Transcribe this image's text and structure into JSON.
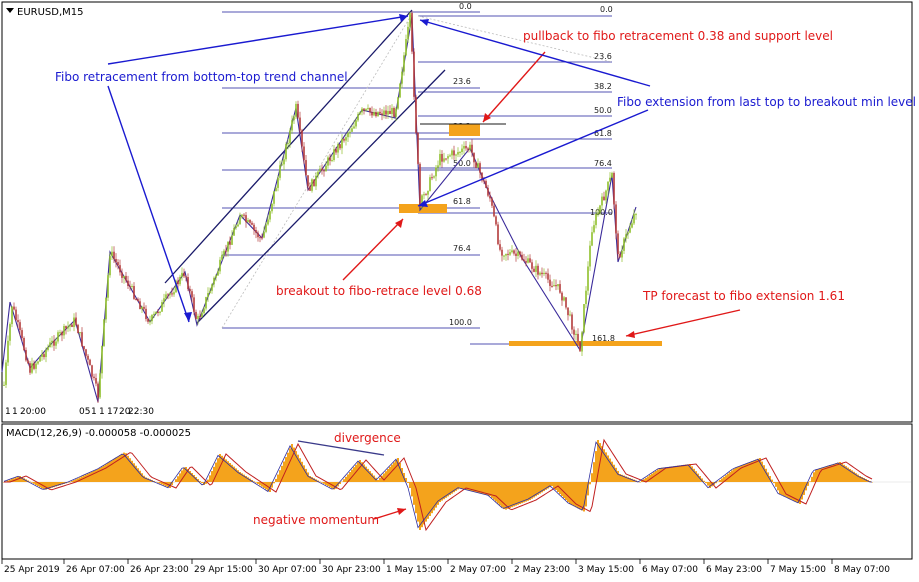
{
  "window": {
    "symbol_title": "EURUSD,M15",
    "macd_title": "MACD(12,26,9) -0.000058 -0.000025"
  },
  "annotations": {
    "fibo_retracement": "Fibo retracement from bottom-top trend channel",
    "pullback": "pullback to fibo retracement 0.38 and support level",
    "fibo_extension": "Fibo extension from last top to breakout min level",
    "breakout": "breakout to fibo-retrace level 0.68",
    "tp_forecast": "TP forecast to fibo extension 1.61",
    "divergence": "divergence",
    "negative_momentum": "negative momentum"
  },
  "retracement_levels": [
    "0.0",
    "23.6",
    "38.2",
    "50.0",
    "61.8",
    "76.4",
    "100.0"
  ],
  "extension_levels": [
    "0.0",
    "23.6",
    "38.2",
    "50.0",
    "61.8",
    "76.4",
    "100.0",
    "161.8"
  ],
  "period_separators": [
    "1",
    "1",
    "20:00",
    "05",
    "1",
    "1",
    "17",
    "20",
    "22:30"
  ],
  "time_axis": [
    "25 Apr 2019",
    "26 Apr 07:00",
    "26 Apr 23:00",
    "29 Apr 15:00",
    "30 Apr 07:00",
    "30 Apr 23:00",
    "1 May 15:00",
    "2 May 07:00",
    "2 May 23:00",
    "3 May 15:00",
    "6 May 07:00",
    "6 May 23:00",
    "7 May 15:00",
    "8 May 07:00"
  ],
  "colors": {
    "background": "#ffffff",
    "candle_up": "#8fbf2a",
    "candle_down": "#b33a3a",
    "fibo_line": "#1a1a9a",
    "highlight": "#f4a31c",
    "macd_hist": "#f4a31c",
    "macd_signal": "#c02020",
    "annotation_blue": "#1a1ad0",
    "annotation_red": "#e01818",
    "projection_line": "#3a2a9a"
  }
}
